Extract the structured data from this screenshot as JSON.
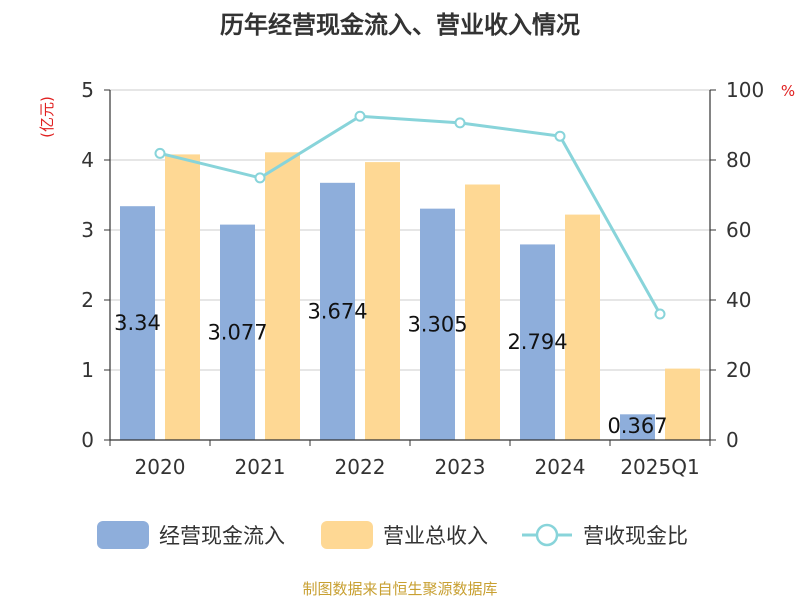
{
  "chart_data": {
    "type": "bar",
    "title": "历年经营现金流入、营业收入情况",
    "categories": [
      "2020",
      "2021",
      "2022",
      "2023",
      "2024",
      "2025Q1"
    ],
    "left_axis": {
      "unit_label": "(亿元)",
      "range": [
        0,
        5
      ],
      "ticks": [
        "0",
        "1",
        "2",
        "3",
        "4",
        "5"
      ]
    },
    "right_axis": {
      "unit_label": "%",
      "range": [
        0,
        100
      ],
      "ticks": [
        "0",
        "20",
        "40",
        "60",
        "80",
        "100"
      ]
    },
    "series": [
      {
        "name": "经营现金流入",
        "type": "bar",
        "axis": "left",
        "color": "#8eaedb",
        "values": [
          3.34,
          3.077,
          3.674,
          3.305,
          2.794,
          0.367
        ],
        "labels": [
          "3.34",
          "3.077",
          "3.674",
          "3.305",
          "2.794",
          "0.367"
        ]
      },
      {
        "name": "营业总收入",
        "type": "bar",
        "axis": "left",
        "color": "#fed894",
        "values": [
          4.08,
          4.11,
          3.97,
          3.65,
          3.22,
          1.02
        ]
      },
      {
        "name": "营收现金比",
        "type": "line",
        "axis": "right",
        "color": "#88d4da",
        "values": [
          81.9,
          74.9,
          92.5,
          90.6,
          86.8,
          36.0
        ]
      }
    ],
    "grid": true,
    "legend_position": "bottom",
    "source": "制图数据来自恒生聚源数据库"
  }
}
